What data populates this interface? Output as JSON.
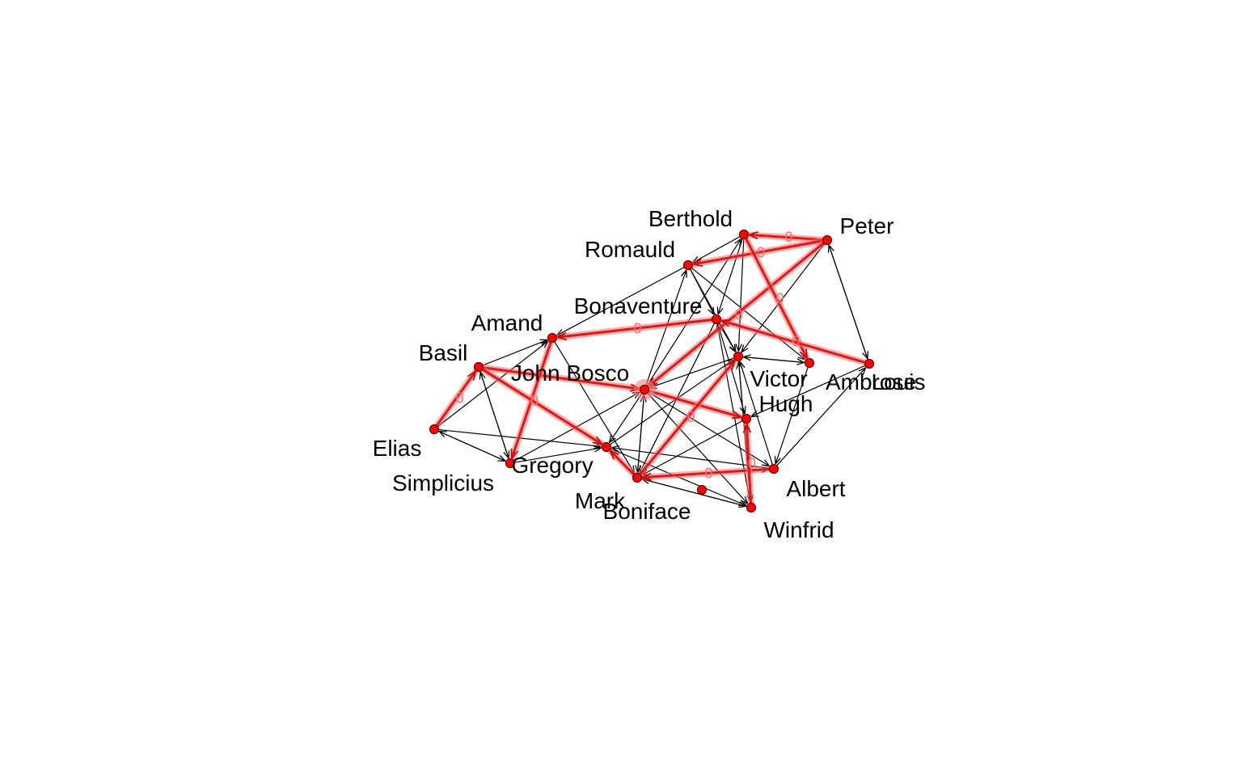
{
  "diagram": {
    "type": "directed-network",
    "colors": {
      "node_fill": "#ff0000",
      "node_stroke": "#660000",
      "edge_black": "#000000",
      "edge_highlight": "#dd1a1a",
      "edge_glow": "#ff7070",
      "edge_label": "#ff6b6b",
      "label_text": "#000000"
    },
    "nodes": [
      {
        "id": "berthold",
        "label": "Berthold"
      },
      {
        "id": "peter",
        "label": "Peter"
      },
      {
        "id": "romauld",
        "label": "Romauld"
      },
      {
        "id": "bonaventure",
        "label": "Bonaventure"
      },
      {
        "id": "amand",
        "label": "Amand"
      },
      {
        "id": "basil",
        "label": "Basil"
      },
      {
        "id": "john_bosco",
        "label": "John Bosco"
      },
      {
        "id": "victor",
        "label": "Victor"
      },
      {
        "id": "ambrose",
        "label": "Ambrose"
      },
      {
        "id": "louis",
        "label": "Louis"
      },
      {
        "id": "hugh",
        "label": "Hugh"
      },
      {
        "id": "elias",
        "label": "Elias"
      },
      {
        "id": "simplicius",
        "label": "Simplicius"
      },
      {
        "id": "gregory",
        "label": "Gregory"
      },
      {
        "id": "mark",
        "label": "Mark"
      },
      {
        "id": "boniface",
        "label": "Boniface"
      },
      {
        "id": "albert",
        "label": "Albert"
      },
      {
        "id": "winfrid",
        "label": "Winfrid"
      }
    ],
    "edges": [
      {
        "from": "peter",
        "to": "berthold",
        "highlight": true,
        "label": "0"
      },
      {
        "from": "peter",
        "to": "romauld",
        "highlight": true,
        "label": "0"
      },
      {
        "from": "peter",
        "to": "john_bosco",
        "highlight": true,
        "label": "0"
      },
      {
        "from": "berthold",
        "to": "ambrose",
        "highlight": true,
        "label": "0"
      },
      {
        "from": "louis",
        "to": "bonaventure",
        "highlight": true,
        "label": "0"
      },
      {
        "from": "bonaventure",
        "to": "amand",
        "highlight": true,
        "label": "0"
      },
      {
        "from": "basil",
        "to": "john_bosco",
        "highlight": true,
        "label": ""
      },
      {
        "from": "john_bosco",
        "to": "hugh",
        "highlight": true,
        "label": ""
      },
      {
        "from": "amand",
        "to": "gregory",
        "highlight": true,
        "label": "0"
      },
      {
        "from": "elias",
        "to": "basil",
        "highlight": true,
        "label": "0"
      },
      {
        "from": "basil",
        "to": "mark",
        "highlight": true,
        "label": ""
      },
      {
        "from": "boniface",
        "to": "victor",
        "highlight": true,
        "label": "0"
      },
      {
        "from": "albert",
        "to": "boniface",
        "highlight": true,
        "label": "0"
      },
      {
        "from": "boniface",
        "to": "mark",
        "highlight": true,
        "label": ""
      },
      {
        "from": "winfrid",
        "to": "hugh",
        "highlight": true,
        "label": "0"
      },
      {
        "from": "hugh",
        "to": "simplicius_unused",
        "highlight": false,
        "label": ""
      },
      {
        "from": "berthold",
        "to": "bonaventure",
        "highlight": false,
        "label": ""
      },
      {
        "from": "berthold",
        "to": "victor",
        "highlight": false,
        "label": ""
      },
      {
        "from": "berthold",
        "to": "romauld",
        "highlight": false,
        "label": ""
      },
      {
        "from": "romauld",
        "to": "amand",
        "highlight": false,
        "label": ""
      },
      {
        "from": "romauld",
        "to": "victor",
        "highlight": false,
        "label": ""
      },
      {
        "from": "romauld",
        "to": "ambrose",
        "highlight": false,
        "label": ""
      },
      {
        "from": "romauld",
        "to": "bonaventure",
        "highlight": false,
        "label": ""
      },
      {
        "from": "peter",
        "to": "louis",
        "highlight": false,
        "label": ""
      },
      {
        "from": "louis",
        "to": "peter",
        "highlight": false,
        "label": ""
      },
      {
        "from": "peter",
        "to": "victor",
        "highlight": false,
        "label": ""
      },
      {
        "from": "bonaventure",
        "to": "victor",
        "highlight": false,
        "label": ""
      },
      {
        "from": "bonaventure",
        "to": "hugh",
        "highlight": false,
        "label": ""
      },
      {
        "from": "ambrose",
        "to": "victor",
        "highlight": false,
        "label": ""
      },
      {
        "from": "victor",
        "to": "ambrose",
        "highlight": false,
        "label": ""
      },
      {
        "from": "ambrose",
        "to": "albert",
        "highlight": false,
        "label": ""
      },
      {
        "from": "albert",
        "to": "louis",
        "highlight": false,
        "label": ""
      },
      {
        "from": "louis",
        "to": "hugh",
        "highlight": false,
        "label": ""
      },
      {
        "from": "victor",
        "to": "john_bosco",
        "highlight": false,
        "label": ""
      },
      {
        "from": "john_bosco",
        "to": "romauld",
        "highlight": false,
        "label": ""
      },
      {
        "from": "john_bosco",
        "to": "berthold",
        "highlight": false,
        "label": ""
      },
      {
        "from": "john_bosco",
        "to": "winfrid",
        "highlight": false,
        "label": ""
      },
      {
        "from": "john_bosco",
        "to": "albert",
        "highlight": false,
        "label": ""
      },
      {
        "from": "john_bosco",
        "to": "mark",
        "highlight": false,
        "label": ""
      },
      {
        "from": "john_bosco",
        "to": "boniface",
        "highlight": false,
        "label": ""
      },
      {
        "from": "boniface",
        "to": "john_bosco",
        "highlight": false,
        "label": ""
      },
      {
        "from": "gregory",
        "to": "john_bosco",
        "highlight": false,
        "label": ""
      },
      {
        "from": "amand",
        "to": "boniface",
        "highlight": false,
        "label": ""
      },
      {
        "from": "basil",
        "to": "amand",
        "highlight": false,
        "label": ""
      },
      {
        "from": "basil",
        "to": "gregory",
        "highlight": false,
        "label": ""
      },
      {
        "from": "gregory",
        "to": "basil",
        "highlight": false,
        "label": ""
      },
      {
        "from": "elias",
        "to": "amand",
        "highlight": false,
        "label": ""
      },
      {
        "from": "elias",
        "to": "gregory",
        "highlight": false,
        "label": ""
      },
      {
        "from": "elias",
        "to": "mark",
        "highlight": false,
        "label": ""
      },
      {
        "from": "gregory",
        "to": "elias",
        "highlight": false,
        "label": ""
      },
      {
        "from": "gregory",
        "to": "mark",
        "highlight": false,
        "label": ""
      },
      {
        "from": "mark",
        "to": "victor",
        "highlight": false,
        "label": ""
      },
      {
        "from": "mark",
        "to": "winfrid",
        "highlight": false,
        "label": ""
      },
      {
        "from": "boniface",
        "to": "winfrid",
        "highlight": false,
        "label": ""
      },
      {
        "from": "winfrid",
        "to": "boniface",
        "highlight": false,
        "label": ""
      },
      {
        "from": "boniface",
        "to": "albert",
        "highlight": false,
        "label": ""
      },
      {
        "from": "albert",
        "to": "mark",
        "highlight": false,
        "label": ""
      },
      {
        "from": "albert",
        "to": "victor",
        "highlight": false,
        "label": ""
      },
      {
        "from": "hugh",
        "to": "boniface",
        "highlight": false,
        "label": ""
      },
      {
        "from": "winfrid",
        "to": "victor",
        "highlight": false,
        "label": ""
      },
      {
        "from": "winfrid",
        "to": "bonaventure",
        "highlight": false,
        "label": ""
      },
      {
        "from": "victor",
        "to": "winfrid",
        "highlight": false,
        "label": ""
      },
      {
        "from": "bonaventure",
        "to": "boniface",
        "highlight": false,
        "label": ""
      }
    ]
  }
}
